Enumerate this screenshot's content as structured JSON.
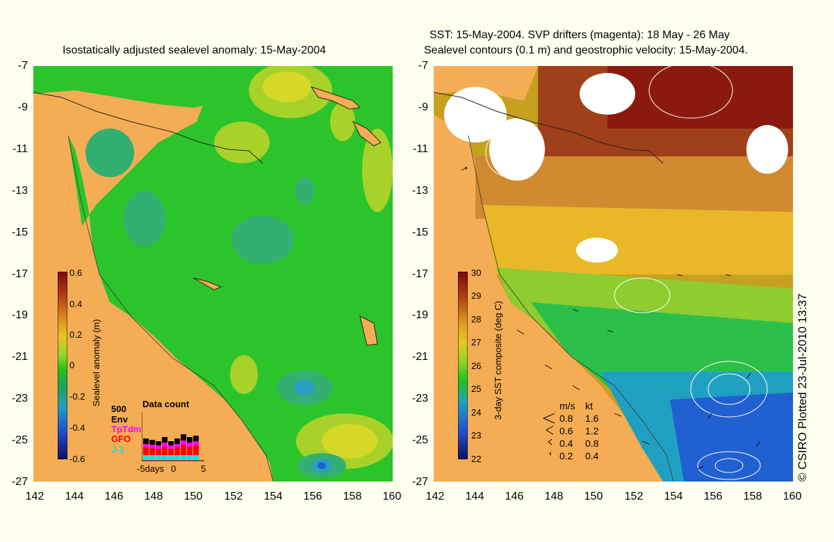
{
  "left_panel": {
    "title": "Isostatically adjusted sealevel anomaly: 15-May-2004",
    "colorbar": {
      "label": "Sealevel anomaly (m)",
      "ticks": [
        "0.6",
        "0.4",
        "0.2",
        "0",
        "-0.2",
        "-0.4",
        "-0.6"
      ],
      "range": [
        -0.6,
        0.6
      ]
    },
    "data_count": {
      "title": "Data count",
      "scale": "500",
      "legend": [
        {
          "name": "Env",
          "color": "#000000"
        },
        {
          "name": "TpTdm",
          "color": "#ff00ff"
        },
        {
          "name": "GFO",
          "color": "#ff0000"
        },
        {
          "name": "J-1",
          "color": "#00e5e5"
        }
      ],
      "xlabels": [
        "-5days",
        "0",
        "5"
      ]
    }
  },
  "right_panel": {
    "title_line1": "SST: 15-May-2004. SVP drifters (magenta): 18 May - 26 May",
    "title_line2": "Sealevel contours (0.1 m) and geostrophic velocity: 15-May-2004.",
    "colorbar": {
      "label": "3-day SST composite (deg C)",
      "ticks": [
        "30",
        "29",
        "28",
        "27",
        "26",
        "25",
        "24",
        "23",
        "22"
      ],
      "range": [
        22,
        30
      ]
    },
    "velocity_key": {
      "header_ms": "m/s",
      "header_kt": "kt",
      "rows": [
        {
          "ms": "0.8",
          "kt": "1.6"
        },
        {
          "ms": "0.6",
          "kt": "1.2"
        },
        {
          "ms": "0.4",
          "kt": "0.8"
        },
        {
          "ms": "0.2",
          "kt": "0.4"
        }
      ]
    }
  },
  "axes": {
    "lat_ticks": [
      "-7",
      "-9",
      "-11",
      "-13",
      "-15",
      "-17",
      "-19",
      "-21",
      "-23",
      "-25",
      "-27"
    ],
    "lon_ticks": [
      "142",
      "144",
      "146",
      "148",
      "150",
      "152",
      "154",
      "156",
      "158",
      "160"
    ]
  },
  "credit": "© CSIRO Plotted 23-Jul-2010 13:37",
  "colors": {
    "background": "#fffff0",
    "land": "#f5ad55",
    "sla_zero": "#22c21e"
  }
}
